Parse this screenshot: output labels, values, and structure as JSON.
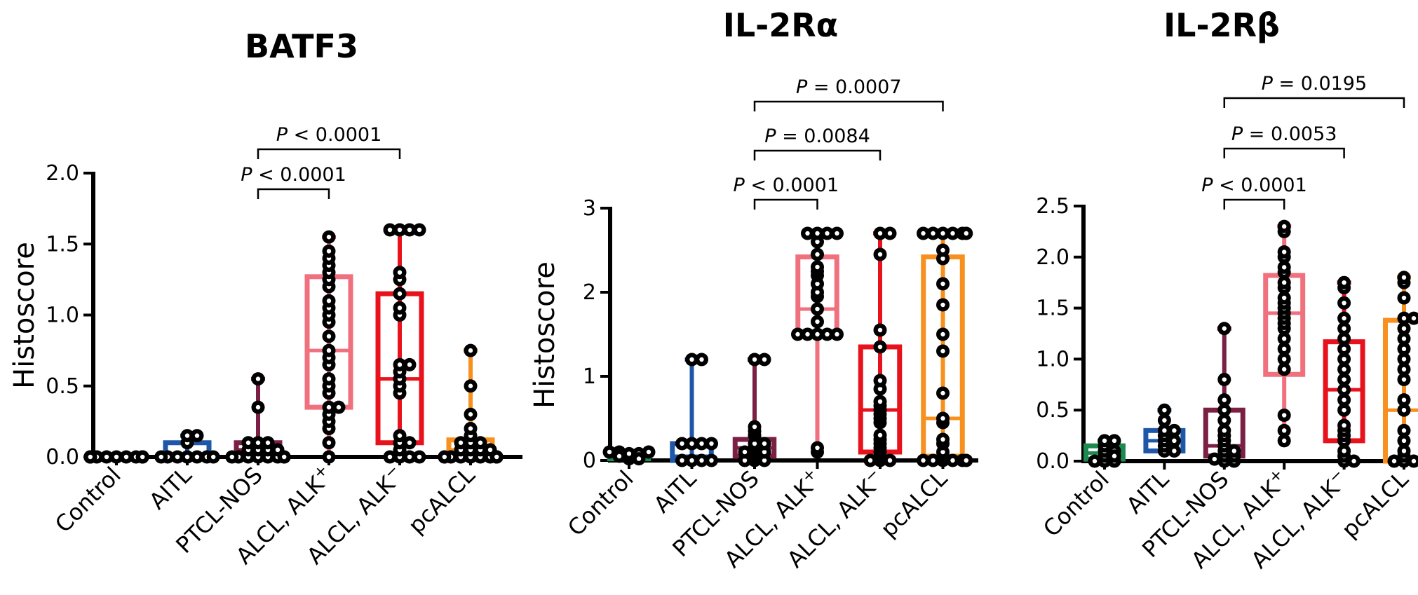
{
  "chart_data": [
    {
      "type": "box",
      "title": "BATF3",
      "ylabel": "Histoscore",
      "ylim": [
        0,
        2.0
      ],
      "yticks": [
        "0.0",
        "0.5",
        "1.0",
        "1.5",
        "2.0"
      ],
      "categories": [
        "Control",
        "AITL",
        "PTCL-NOS",
        "ALCL, ALK",
        "ALCL, ALK",
        "pcALCL"
      ],
      "category_superscripts": [
        "",
        "",
        "",
        "+",
        "−",
        ""
      ],
      "series": [
        {
          "category": "Control",
          "color": "#1d8a4f",
          "box": [
            0,
            0,
            0
          ],
          "whisker": [
            0,
            0
          ],
          "points": [
            0,
            0,
            0,
            0,
            0,
            0,
            0,
            0,
            0,
            0,
            0,
            0,
            0
          ]
        },
        {
          "category": "AITL",
          "color": "#1f57a8",
          "box": [
            0,
            0,
            0.1
          ],
          "whisker": [
            0,
            0.15
          ],
          "points": [
            0,
            0,
            0,
            0,
            0,
            0,
            0,
            0.1,
            0.15,
            0.15
          ]
        },
        {
          "category": "PTCL-NOS",
          "color": "#7b1f45",
          "box": [
            0,
            0.05,
            0.1
          ],
          "whisker": [
            0,
            0.55
          ],
          "points": [
            0,
            0,
            0,
            0,
            0,
            0,
            0,
            0,
            0.05,
            0.05,
            0.05,
            0.05,
            0.1,
            0.1,
            0.1,
            0.35,
            0.55
          ]
        },
        {
          "category": "ALCL, ALK+",
          "color": "#f0707e",
          "box": [
            0.35,
            0.75,
            1.27
          ],
          "whisker": [
            0,
            1.55
          ],
          "points": [
            0,
            0.1,
            0.2,
            0.25,
            0.3,
            0.35,
            0.35,
            0.45,
            0.5,
            0.55,
            0.65,
            0.7,
            0.75,
            0.85,
            0.95,
            1.0,
            1.05,
            1.1,
            1.2,
            1.25,
            1.3,
            1.35,
            1.4,
            1.45,
            1.55
          ]
        },
        {
          "category": "ALCL, ALK-",
          "color": "#e8121c",
          "box": [
            0.1,
            0.55,
            1.15
          ],
          "whisker": [
            0,
            1.6
          ],
          "points": [
            0,
            0,
            0,
            0,
            0.05,
            0.1,
            0.1,
            0.15,
            0.45,
            0.5,
            0.55,
            0.6,
            0.65,
            0.65,
            1.0,
            1.05,
            1.15,
            1.25,
            1.3,
            1.6,
            1.6,
            1.6,
            1.6
          ]
        },
        {
          "category": "pcALCL",
          "color": "#f7901e",
          "box": [
            0.02,
            0.05,
            0.12
          ],
          "whisker": [
            0,
            0.75
          ],
          "points": [
            0,
            0,
            0,
            0,
            0,
            0,
            0,
            0,
            0,
            0,
            0.05,
            0.05,
            0.05,
            0.05,
            0.1,
            0.1,
            0.1,
            0.15,
            0.2,
            0.3,
            0.5,
            0.75
          ]
        }
      ],
      "comparisons": [
        {
          "text": "P < 0.0001",
          "from": "PTCL-NOS",
          "to": "ALCL, ALK+",
          "level": 1
        },
        {
          "text": "P < 0.0001",
          "from": "PTCL-NOS",
          "to": "ALCL, ALK-",
          "level": 2
        }
      ]
    },
    {
      "type": "box",
      "title": "IL-2Rα",
      "ylabel": "Histoscore",
      "ylim": [
        0,
        3
      ],
      "yticks": [
        "0",
        "1",
        "2",
        "3"
      ],
      "categories": [
        "Control",
        "AITL",
        "PTCL-NOS",
        "ALCL, ALK",
        "ALCL, ALK",
        "pcALCL"
      ],
      "category_superscripts": [
        "",
        "",
        "",
        "+",
        "−",
        ""
      ],
      "series": [
        {
          "category": "Control",
          "color": "#1d8a4f",
          "box": [
            0.02,
            0.05,
            0.08
          ],
          "whisker": [
            0,
            0.1
          ],
          "points": [
            0.02,
            0.05,
            0.05,
            0.08,
            0.08,
            0.1,
            0.1,
            0.1,
            0.05,
            0.02
          ]
        },
        {
          "category": "AITL",
          "color": "#1f57a8",
          "box": [
            0,
            0.05,
            0.2
          ],
          "whisker": [
            0,
            1.2
          ],
          "points": [
            0,
            0,
            0,
            0,
            0.2,
            0.2,
            0.2,
            0.2,
            1.2,
            1.2
          ]
        },
        {
          "category": "PTCL-NOS",
          "color": "#7b1f45",
          "box": [
            0.05,
            0.15,
            0.25
          ],
          "whisker": [
            0,
            1.2
          ],
          "points": [
            0,
            0,
            0,
            0.05,
            0.1,
            0.1,
            0.1,
            0.15,
            0.2,
            0.2,
            0.3,
            0.35,
            0.4,
            1.2,
            1.2
          ]
        },
        {
          "category": "ALCL, ALK+",
          "color": "#f0707e",
          "box": [
            1.5,
            1.8,
            2.42
          ],
          "whisker": [
            0.1,
            2.7
          ],
          "points": [
            0.1,
            0.15,
            1.5,
            1.5,
            1.5,
            1.5,
            1.5,
            1.65,
            1.8,
            1.95,
            2.0,
            2.1,
            2.2,
            2.25,
            2.3,
            2.45,
            2.6,
            2.7,
            2.7,
            2.7,
            2.7
          ]
        },
        {
          "category": "ALCL, ALK-",
          "color": "#e8121c",
          "box": [
            0.1,
            0.6,
            1.35
          ],
          "whisker": [
            0,
            2.7
          ],
          "points": [
            0,
            0,
            0,
            0.05,
            0.1,
            0.15,
            0.2,
            0.25,
            0.3,
            0.45,
            0.5,
            0.55,
            0.6,
            0.65,
            0.7,
            0.85,
            0.95,
            1.35,
            1.55,
            2.45,
            2.7,
            2.7
          ]
        },
        {
          "category": "pcALCL",
          "color": "#f7901e",
          "box": [
            0.05,
            0.5,
            2.42
          ],
          "whisker": [
            0,
            2.7
          ],
          "points": [
            0,
            0,
            0,
            0,
            0,
            0,
            0.05,
            0.1,
            0.2,
            0.25,
            0.45,
            0.5,
            0.8,
            1.3,
            1.5,
            1.85,
            2.1,
            2.4,
            2.5,
            2.7,
            2.7,
            2.7,
            2.7,
            2.7,
            2.7
          ]
        }
      ],
      "comparisons": [
        {
          "text": "P < 0.0001",
          "from": "PTCL-NOS",
          "to": "ALCL, ALK+",
          "level": 1
        },
        {
          "text": "P = 0.0084",
          "from": "PTCL-NOS",
          "to": "ALCL, ALK-",
          "level": 2
        },
        {
          "text": "P = 0.0007",
          "from": "PTCL-NOS",
          "to": "pcALCL",
          "level": 3
        }
      ]
    },
    {
      "type": "box",
      "title": "IL-2Rβ",
      "ylabel": "",
      "ylim": [
        0,
        2.5
      ],
      "yticks": [
        "0.0",
        "0.5",
        "1.0",
        "1.5",
        "2.0",
        "2.5"
      ],
      "categories": [
        "Control",
        "AITL",
        "PTCL-NOS",
        "ALCL, ALK",
        "ALCL, ALK",
        "pcALCL"
      ],
      "category_superscripts": [
        "",
        "",
        "",
        "+",
        "−",
        ""
      ],
      "series": [
        {
          "category": "Control",
          "color": "#1d8a4f",
          "box": [
            0.02,
            0.08,
            0.15
          ],
          "whisker": [
            0,
            0.2
          ],
          "points": [
            0,
            0,
            0.05,
            0.1,
            0.1,
            0.15,
            0.2,
            0.2,
            0,
            0.05
          ]
        },
        {
          "category": "AITL",
          "color": "#1f57a8",
          "box": [
            0.1,
            0.2,
            0.3
          ],
          "whisker": [
            0.05,
            0.5
          ],
          "points": [
            0.1,
            0.1,
            0.15,
            0.2,
            0.2,
            0.25,
            0.3,
            0.3,
            0.4,
            0.5
          ]
        },
        {
          "category": "PTCL-NOS",
          "color": "#7b1f45",
          "box": [
            0.05,
            0.15,
            0.5
          ],
          "whisker": [
            0,
            1.3
          ],
          "points": [
            0,
            0,
            0.02,
            0.05,
            0.05,
            0.1,
            0.1,
            0.15,
            0.2,
            0.25,
            0.3,
            0.4,
            0.5,
            0.6,
            0.8,
            1.3
          ]
        },
        {
          "category": "ALCL, ALK+",
          "color": "#f0707e",
          "box": [
            0.85,
            1.45,
            1.82
          ],
          "whisker": [
            0.2,
            2.3
          ],
          "points": [
            0.2,
            0.3,
            0.45,
            0.9,
            1.0,
            1.1,
            1.2,
            1.3,
            1.35,
            1.4,
            1.45,
            1.5,
            1.55,
            1.6,
            1.7,
            1.75,
            1.85,
            1.9,
            2.0,
            2.05,
            2.25,
            2.3
          ]
        },
        {
          "category": "ALCL, ALK-",
          "color": "#e8121c",
          "box": [
            0.2,
            0.7,
            1.17
          ],
          "whisker": [
            0,
            1.75
          ],
          "points": [
            0,
            0,
            0.05,
            0.1,
            0.2,
            0.25,
            0.3,
            0.35,
            0.5,
            0.6,
            0.7,
            0.8,
            0.9,
            1.0,
            1.1,
            1.2,
            1.3,
            1.4,
            1.55,
            1.7,
            1.75
          ]
        },
        {
          "category": "pcALCL",
          "color": "#f7901e",
          "box": [
            0,
            0.5,
            1.38
          ],
          "whisker": [
            0,
            1.8
          ],
          "points": [
            0,
            0,
            0,
            0,
            0.05,
            0.1,
            0.2,
            0.3,
            0.5,
            0.6,
            0.8,
            0.9,
            1.0,
            1.1,
            1.2,
            1.3,
            1.4,
            1.4,
            1.6,
            1.75,
            1.8
          ]
        }
      ],
      "comparisons": [
        {
          "text": "P < 0.0001",
          "from": "PTCL-NOS",
          "to": "ALCL, ALK+",
          "level": 1
        },
        {
          "text": "P = 0.0053",
          "from": "PTCL-NOS",
          "to": "ALCL, ALK-",
          "level": 2
        },
        {
          "text": "P = 0.0195",
          "from": "PTCL-NOS",
          "to": "pcALCL",
          "level": 3
        }
      ]
    }
  ]
}
